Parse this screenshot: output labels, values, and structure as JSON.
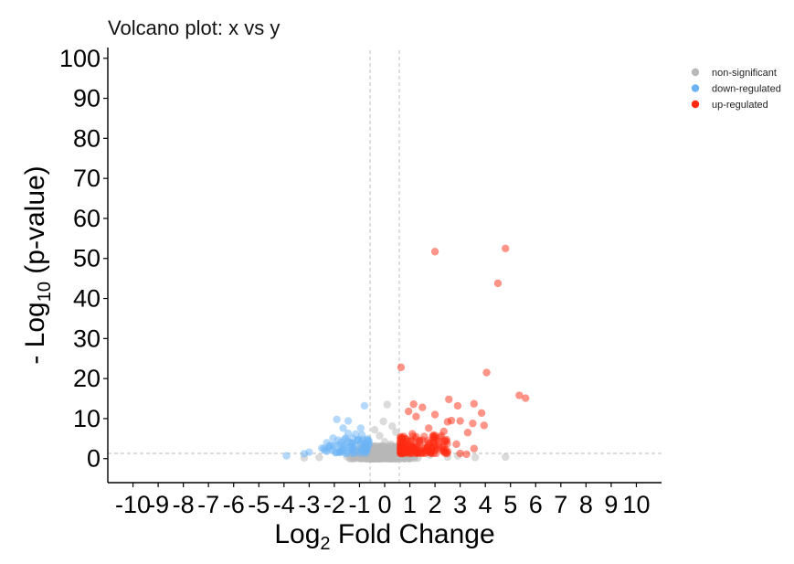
{
  "chart_data": {
    "type": "scatter",
    "title": "Volcano plot: x vs y",
    "xlabel": {
      "main": "Log",
      "sub": "2",
      "rest": " Fold Change"
    },
    "ylabel": {
      "main": "- Log",
      "sub": "10",
      "rest": " (p-value)"
    },
    "xlim": [
      -11,
      11
    ],
    "ylim": [
      -6,
      102
    ],
    "x_ticks": [
      -10,
      -9,
      -8,
      -7,
      -6,
      -5,
      -4,
      -3,
      -2,
      -1,
      0,
      1,
      2,
      3,
      4,
      5,
      6,
      7,
      8,
      9,
      10
    ],
    "y_ticks": [
      0,
      10,
      20,
      30,
      40,
      50,
      60,
      70,
      80,
      90,
      100
    ],
    "thresholds": {
      "log2fc": [
        -0.58,
        0.58
      ],
      "log10p": 1.3
    },
    "legend": {
      "position": "top-right",
      "entries": [
        {
          "label": "non-significant",
          "color": "#b8b8b8"
        },
        {
          "label": "down-regulated",
          "color": "#6bb3f5"
        },
        {
          "label": "up-regulated",
          "color": "#ff2a12"
        }
      ]
    },
    "series": [
      {
        "name": "up-regulated",
        "color": "#ff2a12",
        "points": [
          [
            4.8,
            52.5
          ],
          [
            2.0,
            51.7
          ],
          [
            4.5,
            43.8
          ],
          [
            0.65,
            22.8
          ],
          [
            4.05,
            21.5
          ],
          [
            5.35,
            15.8
          ],
          [
            5.6,
            15.1
          ],
          [
            2.55,
            14.8
          ],
          [
            1.15,
            13.6
          ],
          [
            1.5,
            12.8
          ],
          [
            3.55,
            13.7
          ],
          [
            2.9,
            13.2
          ],
          [
            0.95,
            11.8
          ],
          [
            3.85,
            11.4
          ],
          [
            1.25,
            10.5
          ],
          [
            2.0,
            11.0
          ],
          [
            3.0,
            9.4
          ],
          [
            2.5,
            9.2
          ],
          [
            3.95,
            8.3
          ],
          [
            2.65,
            9.5
          ],
          [
            3.5,
            8.8
          ],
          [
            3.3,
            6.5
          ],
          [
            1.75,
            7.6
          ],
          [
            2.2,
            5.3
          ],
          [
            2.45,
            4.3
          ],
          [
            2.85,
            3.6
          ],
          [
            3.55,
            2.5
          ],
          [
            3.25,
            1.1
          ],
          [
            3.0,
            1.3
          ],
          [
            2.1,
            2.4
          ],
          [
            1.5,
            4.6
          ],
          [
            1.3,
            3.2
          ],
          [
            1.8,
            3.8
          ],
          [
            0.75,
            5.5
          ],
          [
            0.9,
            3.0
          ],
          [
            1.1,
            6.2
          ],
          [
            1.6,
            2.7
          ],
          [
            2.35,
            6.8
          ],
          [
            0.7,
            2.0
          ],
          [
            1.95,
            5.9
          ]
        ]
      },
      {
        "name": "down-regulated",
        "color": "#6bb3f5",
        "points": [
          [
            -3.9,
            0.7
          ],
          [
            -3.0,
            1.6
          ],
          [
            -3.2,
            1.2
          ],
          [
            -2.5,
            2.6
          ],
          [
            -2.3,
            1.8
          ],
          [
            -1.9,
            9.8
          ],
          [
            -1.45,
            9.4
          ],
          [
            -1.65,
            7.6
          ],
          [
            -0.8,
            13.2
          ],
          [
            -0.95,
            7.6
          ],
          [
            -1.15,
            6.1
          ],
          [
            -1.45,
            6.3
          ],
          [
            -2.05,
            5.1
          ],
          [
            -1.85,
            4.6
          ],
          [
            -1.05,
            4.8
          ],
          [
            -0.8,
            3.6
          ],
          [
            -1.6,
            3.3
          ],
          [
            -2.1,
            2.1
          ],
          [
            -1.25,
            2.6
          ],
          [
            -0.7,
            2.0
          ],
          [
            -1.7,
            1.9
          ],
          [
            -0.9,
            5.9
          ],
          [
            -2.2,
            3.1
          ],
          [
            -1.35,
            4.0
          ]
        ]
      },
      {
        "name": "non-significant",
        "color": "#b8b8b8",
        "points": [
          [
            0.1,
            13.5
          ],
          [
            -0.05,
            9.3
          ],
          [
            0.3,
            8.1
          ],
          [
            -0.4,
            7.2
          ],
          [
            0.45,
            6.6
          ],
          [
            -0.2,
            5.7
          ],
          [
            0.0,
            4.2
          ],
          [
            0.25,
            3.6
          ],
          [
            -0.3,
            3.1
          ],
          [
            -0.55,
            2.3
          ],
          [
            0.5,
            2.7
          ],
          [
            -0.1,
            1.8
          ],
          [
            0.15,
            1.2
          ],
          [
            -0.45,
            0.9
          ],
          [
            0.35,
            0.6
          ],
          [
            -0.25,
            0.4
          ],
          [
            0.05,
            0.2
          ],
          [
            -0.6,
            0.5
          ],
          [
            0.6,
            0.4
          ],
          [
            -0.15,
            0.1
          ],
          [
            1.2,
            0.6
          ],
          [
            2.5,
            0.4
          ],
          [
            3.6,
            0.3
          ],
          [
            4.8,
            0.4
          ],
          [
            -1.5,
            0.5
          ],
          [
            -2.6,
            0.3
          ],
          [
            -3.2,
            0.2
          ],
          [
            1.8,
            0.9
          ],
          [
            -1.0,
            0.8
          ],
          [
            2.9,
            0.7
          ]
        ]
      }
    ]
  }
}
